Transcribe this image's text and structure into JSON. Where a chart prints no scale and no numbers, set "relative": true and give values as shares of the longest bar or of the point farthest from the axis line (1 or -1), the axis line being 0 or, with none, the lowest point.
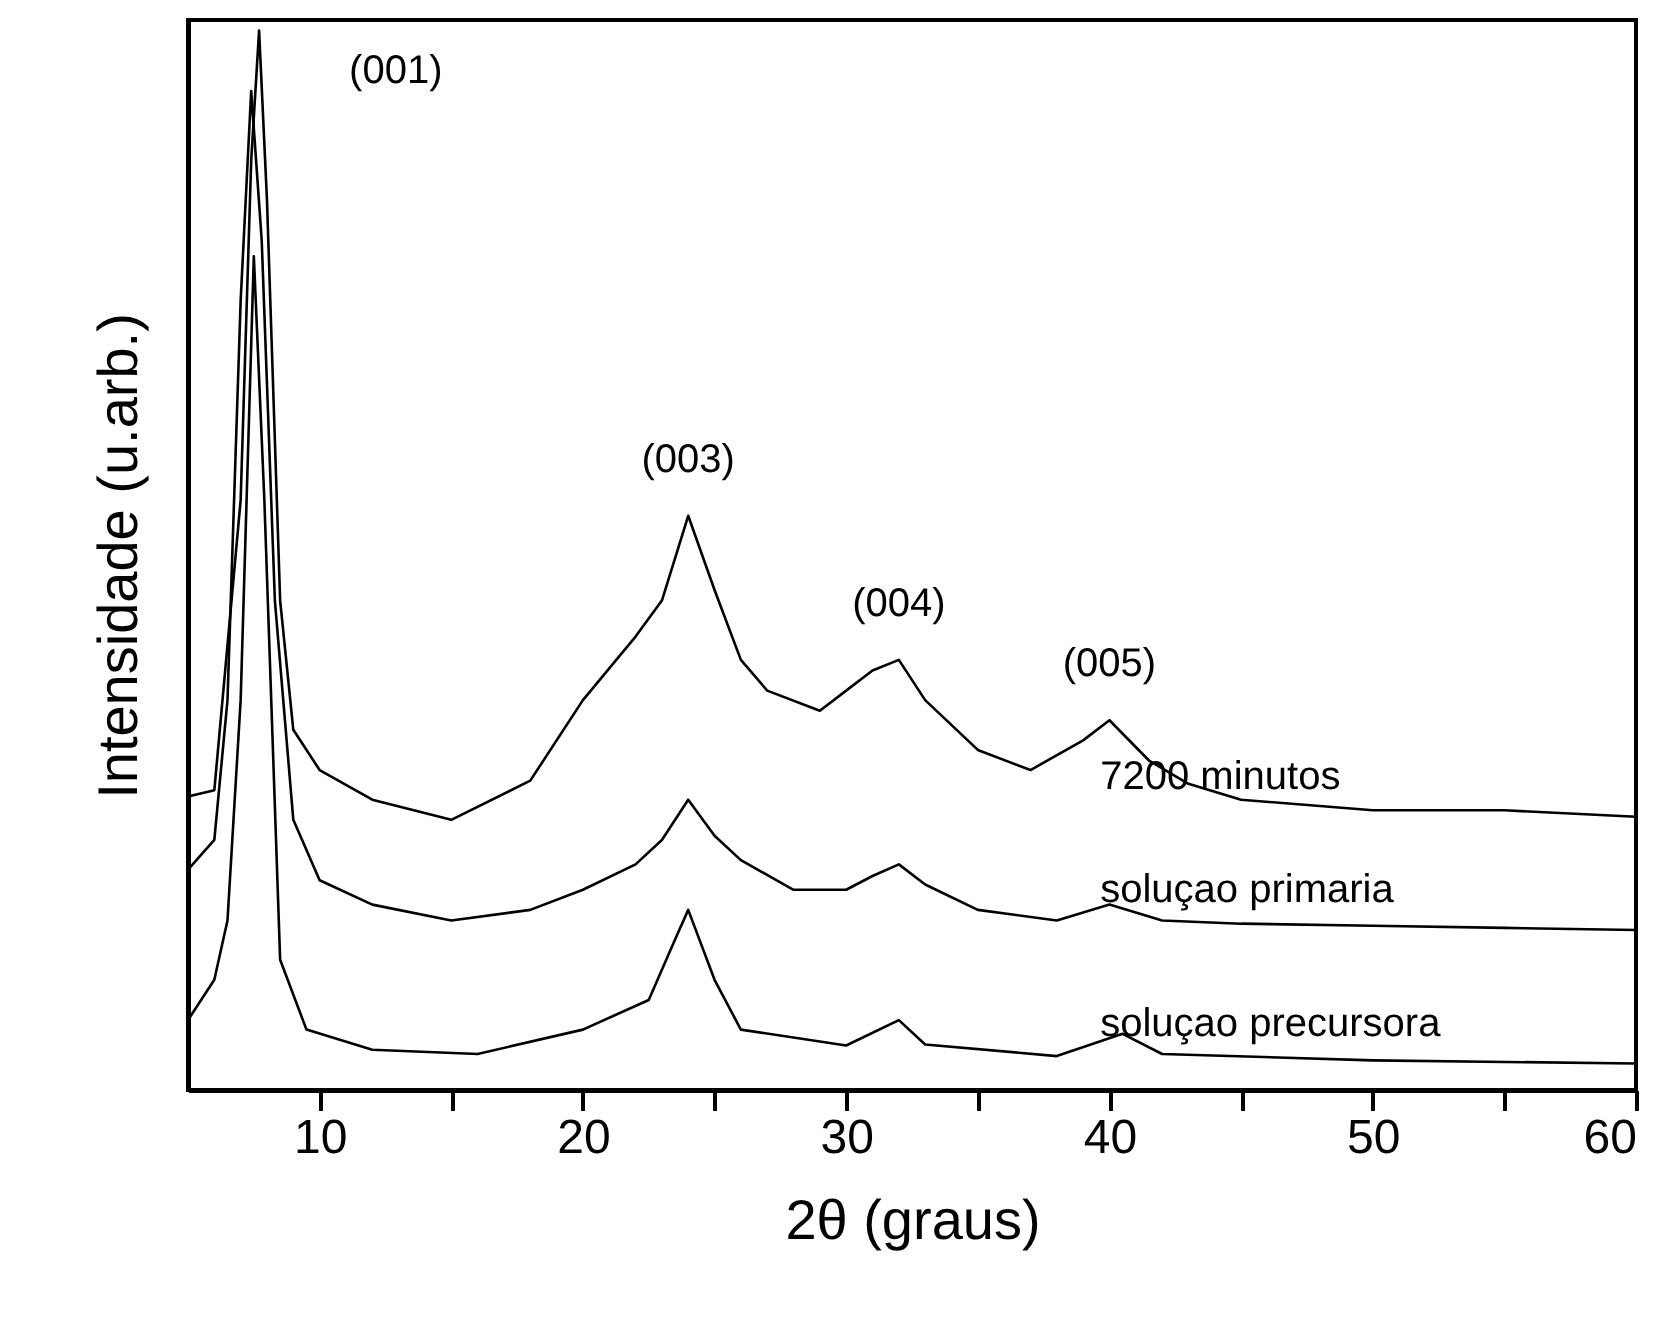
{
  "chart_data": {
    "type": "line",
    "relative": true,
    "xlabel": "2θ (graus)",
    "ylabel": "Intensidade (u.arb.)",
    "xlim": [
      5,
      60
    ],
    "xticks": [
      10,
      {
        "value": 15,
        "label": null
      },
      20,
      {
        "value": 25,
        "label": null
      },
      30,
      {
        "value": 35,
        "label": null
      },
      40,
      {
        "value": 45,
        "label": null
      },
      50,
      {
        "value": 55,
        "label": null
      },
      60
    ],
    "grid": false,
    "legend": false,
    "marker": "none",
    "line_style": "solid",
    "series": [
      {
        "name": "7200 minutos",
        "color": "#000000",
        "x": [
          5,
          6,
          7,
          7.4,
          7.7,
          8,
          8.5,
          9,
          10,
          12,
          15,
          18,
          20,
          22,
          23,
          24,
          25,
          26,
          27,
          29,
          30,
          31,
          32,
          33,
          35,
          37,
          39,
          40,
          41.5,
          43,
          45,
          50,
          55,
          60
        ],
        "values": [
          0.277,
          0.283,
          0.557,
          0.877,
          1,
          0.84,
          0.462,
          0.34,
          0.302,
          0.274,
          0.255,
          0.292,
          0.368,
          0.428,
          0.462,
          0.542,
          0.472,
          0.406,
          0.377,
          0.358,
          0.377,
          0.396,
          0.406,
          0.368,
          0.321,
          0.302,
          0.33,
          0.349,
          0.311,
          0.289,
          0.274,
          0.264,
          0.264,
          0.258
        ]
      },
      {
        "name": "soluçao primaria",
        "color": "#000000",
        "x": [
          5,
          6,
          6.5,
          7,
          7.4,
          7.8,
          8.3,
          9,
          10,
          12,
          15,
          18,
          20,
          22,
          23,
          24,
          25,
          26,
          28,
          30,
          31,
          32,
          33,
          35,
          38,
          40,
          42,
          45,
          50,
          55,
          60
        ],
        "values": [
          0.208,
          0.236,
          0.368,
          0.745,
          0.943,
          0.802,
          0.462,
          0.255,
          0.198,
          0.175,
          0.16,
          0.17,
          0.189,
          0.213,
          0.236,
          0.274,
          0.24,
          0.217,
          0.189,
          0.189,
          0.202,
          0.213,
          0.194,
          0.17,
          0.16,
          0.175,
          0.16,
          0.157,
          0.155,
          0.153,
          0.151
        ]
      },
      {
        "name": "soluçao precursora",
        "color": "#000000",
        "x": [
          5,
          6,
          6.5,
          7,
          7.5,
          7.9,
          8.5,
          9.5,
          12,
          16,
          20,
          22.5,
          23.5,
          24,
          25,
          26,
          30,
          32,
          33,
          38,
          40.5,
          42,
          50,
          60
        ],
        "values": [
          0.066,
          0.104,
          0.16,
          0.368,
          0.787,
          0.557,
          0.123,
          0.057,
          0.038,
          0.034,
          0.057,
          0.085,
          0.142,
          0.17,
          0.104,
          0.057,
          0.042,
          0.066,
          0.043,
          0.032,
          0.053,
          0.034,
          0.028,
          0.025
        ]
      }
    ],
    "annotations": [
      {
        "text": "(001)",
        "x": 7.7,
        "y": 1
      },
      {
        "text": "(003)",
        "x": 24,
        "y": 0.542
      },
      {
        "text": "(004)",
        "x": 32,
        "y": 0.406
      },
      {
        "text": "(005)",
        "x": 40,
        "y": 0.349
      }
    ]
  }
}
